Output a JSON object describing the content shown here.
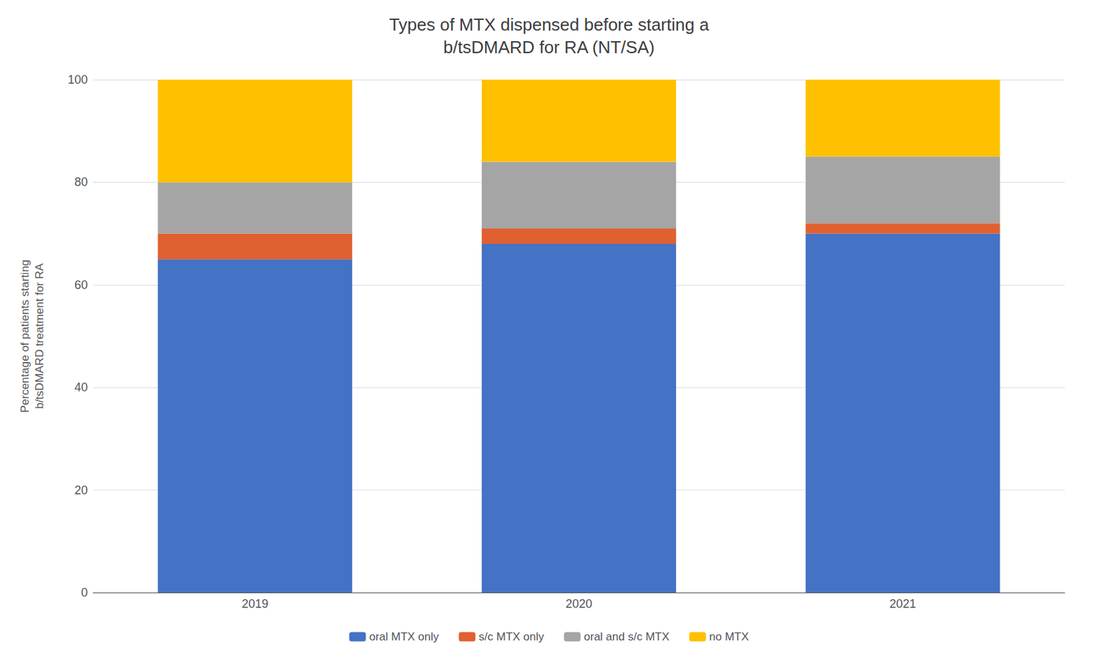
{
  "chart_data": {
    "type": "bar",
    "title": "Types of MTX dispensed before starting a\nb/tsDMARD for RA (NT/SA)",
    "categories": [
      "2019",
      "2020",
      "2021"
    ],
    "series": [
      {
        "name": "oral MTX only",
        "color": "#4472C4",
        "values": [
          65,
          68,
          70
        ]
      },
      {
        "name": "s/c MTX only",
        "color": "#E06030",
        "values": [
          5,
          3,
          2
        ]
      },
      {
        "name": "oral and s/c MTX",
        "color": "#A5A5A5",
        "values": [
          10,
          13,
          13
        ]
      },
      {
        "name": "no MTX",
        "color": "#FFC000",
        "values": [
          20,
          16,
          15
        ]
      }
    ],
    "ylabel": "Percentage of patients starting\nb/tsDMARD treatment for RA",
    "ylim": [
      0,
      100
    ],
    "yticks": [
      0,
      20,
      40,
      60,
      80,
      100
    ],
    "grid": true,
    "stacked": true,
    "legend": "bottom"
  }
}
